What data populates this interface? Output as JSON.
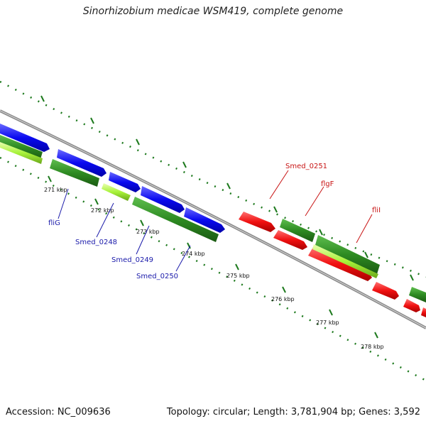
{
  "title": "Sinorhizobium medicae WSM419, complete genome",
  "footer": {
    "accession": "Accession: NC_009636",
    "summary": "Topology: circular; Length: 3,781,904 bp; Genes: 3,592"
  },
  "colors": {
    "forward_gene": "#0a0af0",
    "reverse_gene": "#f01010",
    "cds": "#2e8b22",
    "rna": "#a8f23a",
    "backbone": "#8a8a8a",
    "ruler": "#1e7a1e",
    "label_blue": "#1a1aaa",
    "label_red": "#c81414"
  },
  "ruler_ticks": [
    {
      "label": "271 kbp"
    },
    {
      "label": "272 kbp"
    },
    {
      "label": "273 kbp"
    },
    {
      "label": "274 kbp"
    },
    {
      "label": "275 kbp"
    },
    {
      "label": "276 kbp"
    },
    {
      "label": "277 kbp"
    },
    {
      "label": "278 kbp"
    }
  ],
  "gene_labels": [
    {
      "text": "fliG"
    },
    {
      "text": "Smed_0248"
    },
    {
      "text": "Smed_0249"
    },
    {
      "text": "Smed_0250"
    },
    {
      "text": "Smed_0251"
    },
    {
      "text": "flgF"
    },
    {
      "text": "fliI"
    }
  ]
}
